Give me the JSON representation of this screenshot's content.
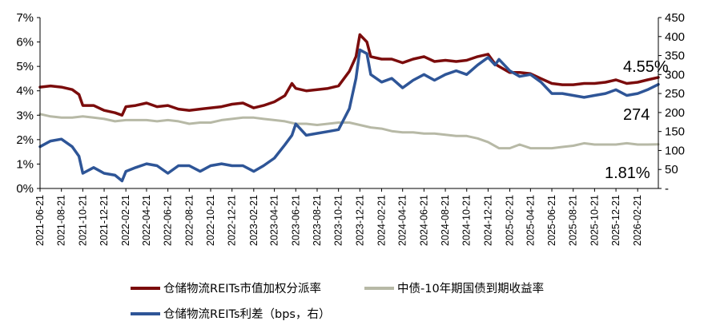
{
  "chart_data": {
    "type": "line",
    "title": "",
    "xlabel": "",
    "ylabel_left": "",
    "ylabel_right": "",
    "ylim_left": [
      0,
      7
    ],
    "ylim_right": [
      0,
      450
    ],
    "y_ticks_left": [
      "0%",
      "1%",
      "2%",
      "3%",
      "4%",
      "5%",
      "6%",
      "7%"
    ],
    "y_ticks_right": [
      "-",
      "50",
      "100",
      "150",
      "200",
      "250",
      "300",
      "350",
      "400",
      "450"
    ],
    "x_ticks": [
      "2021-06-21",
      "2021-08-21",
      "2021-10-21",
      "2021-12-21",
      "2022-02-21",
      "2022-04-21",
      "2022-06-21",
      "2022-08-21",
      "2022-10-21",
      "2022-12-21",
      "2023-02-21",
      "2023-04-21",
      "2023-06-21",
      "2023-08-21",
      "2023-10-21",
      "2023-12-21",
      "2024-02-21",
      "2024-04-21",
      "2024-06-21",
      "2024-08-21",
      "2024-10-21",
      "2024-12-21",
      "2025-02-21",
      "2025-04-21",
      "2025-06-21",
      "2025-08-21",
      "2025-10-21",
      "2025-12-21",
      "2026-02-21"
    ],
    "x_range": [
      "2021-06-21",
      "2026-04-21"
    ],
    "grid": false,
    "legend_position": "bottom",
    "annotations": [
      "4.55%",
      "274",
      "1.81%"
    ],
    "series": [
      {
        "name": "仓储物流REITs市值加权分派率",
        "axis": "left",
        "color": "#7b0c0c",
        "points": [
          [
            "2021-06-21",
            4.15
          ],
          [
            "2021-07-21",
            4.2
          ],
          [
            "2021-08-21",
            4.15
          ],
          [
            "2021-09-21",
            4.05
          ],
          [
            "2021-10-10",
            3.85
          ],
          [
            "2021-10-21",
            3.4
          ],
          [
            "2021-11-21",
            3.4
          ],
          [
            "2021-12-21",
            3.2
          ],
          [
            "2022-01-21",
            3.1
          ],
          [
            "2022-02-10",
            3.0
          ],
          [
            "2022-02-21",
            3.35
          ],
          [
            "2022-03-21",
            3.4
          ],
          [
            "2022-04-21",
            3.5
          ],
          [
            "2022-05-21",
            3.35
          ],
          [
            "2022-06-21",
            3.4
          ],
          [
            "2022-07-21",
            3.25
          ],
          [
            "2022-08-21",
            3.2
          ],
          [
            "2022-09-21",
            3.25
          ],
          [
            "2022-10-21",
            3.3
          ],
          [
            "2022-11-21",
            3.35
          ],
          [
            "2022-12-21",
            3.45
          ],
          [
            "2023-01-21",
            3.5
          ],
          [
            "2023-02-21",
            3.3
          ],
          [
            "2023-03-21",
            3.4
          ],
          [
            "2023-04-21",
            3.55
          ],
          [
            "2023-05-21",
            3.8
          ],
          [
            "2023-06-10",
            4.3
          ],
          [
            "2023-06-21",
            4.1
          ],
          [
            "2023-07-21",
            4.0
          ],
          [
            "2023-08-21",
            4.05
          ],
          [
            "2023-09-21",
            4.1
          ],
          [
            "2023-10-21",
            4.2
          ],
          [
            "2023-11-21",
            4.8
          ],
          [
            "2023-12-10",
            5.4
          ],
          [
            "2023-12-21",
            6.3
          ],
          [
            "2024-01-10",
            6.0
          ],
          [
            "2024-01-21",
            5.4
          ],
          [
            "2024-02-21",
            5.3
          ],
          [
            "2024-03-21",
            5.3
          ],
          [
            "2024-04-21",
            5.15
          ],
          [
            "2024-05-21",
            5.3
          ],
          [
            "2024-06-21",
            5.4
          ],
          [
            "2024-07-21",
            5.2
          ],
          [
            "2024-08-21",
            5.25
          ],
          [
            "2024-09-21",
            5.2
          ],
          [
            "2024-10-21",
            5.25
          ],
          [
            "2024-11-21",
            5.4
          ],
          [
            "2024-12-21",
            5.5
          ],
          [
            "2025-01-10",
            5.1
          ],
          [
            "2025-01-21",
            5.0
          ],
          [
            "2025-02-21",
            4.75
          ],
          [
            "2025-03-21",
            4.75
          ],
          [
            "2025-04-21",
            4.7
          ],
          [
            "2025-05-21",
            4.5
          ],
          [
            "2025-06-21",
            4.3
          ],
          [
            "2025-07-21",
            4.25
          ],
          [
            "2025-08-21",
            4.25
          ],
          [
            "2025-09-21",
            4.3
          ],
          [
            "2025-10-21",
            4.3
          ],
          [
            "2025-11-21",
            4.35
          ],
          [
            "2025-12-21",
            4.45
          ],
          [
            "2026-01-21",
            4.3
          ],
          [
            "2026-02-21",
            4.35
          ],
          [
            "2026-03-21",
            4.45
          ],
          [
            "2026-04-21",
            4.55
          ]
        ]
      },
      {
        "name": "中债-10年期国债到期收益率",
        "axis": "left",
        "color": "#b7b9a6",
        "points": [
          [
            "2021-06-21",
            3.05
          ],
          [
            "2021-07-21",
            2.95
          ],
          [
            "2021-08-21",
            2.9
          ],
          [
            "2021-09-21",
            2.9
          ],
          [
            "2021-10-21",
            2.95
          ],
          [
            "2021-11-21",
            2.9
          ],
          [
            "2021-12-21",
            2.85
          ],
          [
            "2022-01-21",
            2.75
          ],
          [
            "2022-02-21",
            2.8
          ],
          [
            "2022-03-21",
            2.8
          ],
          [
            "2022-04-21",
            2.8
          ],
          [
            "2022-05-21",
            2.75
          ],
          [
            "2022-06-21",
            2.8
          ],
          [
            "2022-07-21",
            2.75
          ],
          [
            "2022-08-21",
            2.65
          ],
          [
            "2022-09-21",
            2.7
          ],
          [
            "2022-10-21",
            2.7
          ],
          [
            "2022-11-21",
            2.8
          ],
          [
            "2022-12-21",
            2.85
          ],
          [
            "2023-01-21",
            2.9
          ],
          [
            "2023-02-21",
            2.9
          ],
          [
            "2023-03-21",
            2.85
          ],
          [
            "2023-04-21",
            2.8
          ],
          [
            "2023-05-21",
            2.75
          ],
          [
            "2023-06-21",
            2.65
          ],
          [
            "2023-07-21",
            2.65
          ],
          [
            "2023-08-21",
            2.6
          ],
          [
            "2023-09-21",
            2.65
          ],
          [
            "2023-10-21",
            2.7
          ],
          [
            "2023-11-21",
            2.7
          ],
          [
            "2023-12-21",
            2.6
          ],
          [
            "2024-01-21",
            2.5
          ],
          [
            "2024-02-21",
            2.45
          ],
          [
            "2024-03-21",
            2.35
          ],
          [
            "2024-04-21",
            2.3
          ],
          [
            "2024-05-21",
            2.3
          ],
          [
            "2024-06-21",
            2.25
          ],
          [
            "2024-07-21",
            2.25
          ],
          [
            "2024-08-21",
            2.2
          ],
          [
            "2024-09-21",
            2.15
          ],
          [
            "2024-10-21",
            2.15
          ],
          [
            "2024-11-21",
            2.05
          ],
          [
            "2024-12-21",
            1.9
          ],
          [
            "2025-01-21",
            1.65
          ],
          [
            "2025-02-21",
            1.65
          ],
          [
            "2025-03-21",
            1.8
          ],
          [
            "2025-04-21",
            1.65
          ],
          [
            "2025-05-21",
            1.65
          ],
          [
            "2025-06-21",
            1.65
          ],
          [
            "2025-07-21",
            1.7
          ],
          [
            "2025-08-21",
            1.75
          ],
          [
            "2025-09-21",
            1.85
          ],
          [
            "2025-10-21",
            1.8
          ],
          [
            "2025-11-21",
            1.8
          ],
          [
            "2025-12-21",
            1.8
          ],
          [
            "2026-01-21",
            1.85
          ],
          [
            "2026-02-21",
            1.8
          ],
          [
            "2026-03-21",
            1.8
          ],
          [
            "2026-04-21",
            1.81
          ]
        ]
      },
      {
        "name": "仓储物流REITs利差（bps，右）",
        "axis": "right",
        "color": "#2e5597",
        "points": [
          [
            "2021-06-21",
            110
          ],
          [
            "2021-07-21",
            125
          ],
          [
            "2021-08-21",
            130
          ],
          [
            "2021-09-21",
            110
          ],
          [
            "2021-10-10",
            85
          ],
          [
            "2021-10-21",
            40
          ],
          [
            "2021-11-21",
            55
          ],
          [
            "2021-12-21",
            40
          ],
          [
            "2022-01-21",
            35
          ],
          [
            "2022-02-10",
            20
          ],
          [
            "2022-02-21",
            45
          ],
          [
            "2022-03-21",
            55
          ],
          [
            "2022-04-21",
            65
          ],
          [
            "2022-05-21",
            60
          ],
          [
            "2022-06-21",
            40
          ],
          [
            "2022-07-21",
            60
          ],
          [
            "2022-08-21",
            60
          ],
          [
            "2022-09-21",
            45
          ],
          [
            "2022-10-21",
            60
          ],
          [
            "2022-11-21",
            65
          ],
          [
            "2022-12-21",
            60
          ],
          [
            "2023-01-21",
            60
          ],
          [
            "2023-02-21",
            45
          ],
          [
            "2023-03-21",
            60
          ],
          [
            "2023-04-21",
            80
          ],
          [
            "2023-05-21",
            115
          ],
          [
            "2023-06-10",
            140
          ],
          [
            "2023-06-21",
            170
          ],
          [
            "2023-07-21",
            140
          ],
          [
            "2023-08-21",
            145
          ],
          [
            "2023-09-21",
            150
          ],
          [
            "2023-10-21",
            155
          ],
          [
            "2023-11-21",
            210
          ],
          [
            "2023-12-10",
            290
          ],
          [
            "2023-12-21",
            365
          ],
          [
            "2024-01-10",
            355
          ],
          [
            "2024-01-21",
            300
          ],
          [
            "2024-02-21",
            280
          ],
          [
            "2024-03-21",
            290
          ],
          [
            "2024-04-21",
            265
          ],
          [
            "2024-05-21",
            285
          ],
          [
            "2024-06-21",
            300
          ],
          [
            "2024-07-21",
            285
          ],
          [
            "2024-08-21",
            300
          ],
          [
            "2024-09-21",
            310
          ],
          [
            "2024-10-21",
            300
          ],
          [
            "2024-11-21",
            325
          ],
          [
            "2024-12-21",
            345
          ],
          [
            "2025-01-10",
            325
          ],
          [
            "2025-01-21",
            340
          ],
          [
            "2025-02-21",
            310
          ],
          [
            "2025-03-21",
            295
          ],
          [
            "2025-04-21",
            300
          ],
          [
            "2025-05-21",
            280
          ],
          [
            "2025-06-21",
            250
          ],
          [
            "2025-07-21",
            250
          ],
          [
            "2025-08-21",
            245
          ],
          [
            "2025-09-21",
            240
          ],
          [
            "2025-10-21",
            245
          ],
          [
            "2025-11-21",
            250
          ],
          [
            "2025-12-21",
            260
          ],
          [
            "2026-01-21",
            245
          ],
          [
            "2026-02-21",
            250
          ],
          [
            "2026-03-21",
            260
          ],
          [
            "2026-04-21",
            274
          ]
        ]
      }
    ]
  }
}
